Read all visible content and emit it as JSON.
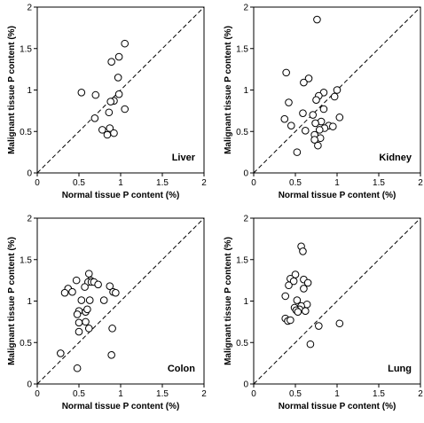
{
  "chart_data": [
    {
      "type": "scatter",
      "panel_label": "Liver",
      "xlabel": "Normal tissue P content (%)",
      "ylabel": "Malignant tissue P content (%)",
      "xlim": [
        0,
        2
      ],
      "ylim": [
        0,
        2
      ],
      "xticks": [
        "0",
        "0.5",
        "1",
        "1.5",
        "2"
      ],
      "yticks": [
        "0",
        "0.5",
        "1",
        "1.5",
        "2"
      ],
      "reference_line": "y = x (dashed)",
      "points": [
        {
          "x": 1.05,
          "y": 1.56
        },
        {
          "x": 0.98,
          "y": 1.4
        },
        {
          "x": 0.89,
          "y": 1.34
        },
        {
          "x": 0.97,
          "y": 1.15
        },
        {
          "x": 0.53,
          "y": 0.97
        },
        {
          "x": 0.7,
          "y": 0.94
        },
        {
          "x": 0.98,
          "y": 0.95
        },
        {
          "x": 0.92,
          "y": 0.87
        },
        {
          "x": 0.88,
          "y": 0.86
        },
        {
          "x": 0.86,
          "y": 0.73
        },
        {
          "x": 1.05,
          "y": 0.77
        },
        {
          "x": 0.69,
          "y": 0.66
        },
        {
          "x": 0.78,
          "y": 0.52
        },
        {
          "x": 0.87,
          "y": 0.54
        },
        {
          "x": 0.84,
          "y": 0.46
        },
        {
          "x": 0.92,
          "y": 0.48
        }
      ]
    },
    {
      "type": "scatter",
      "panel_label": "Kidney",
      "xlabel": "Normal tissue P content (%)",
      "ylabel": "Malignant tissue P content (%)",
      "xlim": [
        0,
        2
      ],
      "ylim": [
        0,
        2
      ],
      "xticks": [
        "0",
        "0.5",
        "1",
        "1.5",
        "2"
      ],
      "yticks": [
        "0",
        "0.5",
        "1",
        "1.5",
        "2"
      ],
      "reference_line": "y = x (dashed)",
      "points": [
        {
          "x": 0.76,
          "y": 1.85
        },
        {
          "x": 0.39,
          "y": 1.21
        },
        {
          "x": 0.66,
          "y": 1.14
        },
        {
          "x": 0.6,
          "y": 1.09
        },
        {
          "x": 1.0,
          "y": 1.0
        },
        {
          "x": 0.84,
          "y": 0.97
        },
        {
          "x": 0.78,
          "y": 0.93
        },
        {
          "x": 0.97,
          "y": 0.92
        },
        {
          "x": 0.75,
          "y": 0.88
        },
        {
          "x": 0.42,
          "y": 0.85
        },
        {
          "x": 0.84,
          "y": 0.77
        },
        {
          "x": 0.59,
          "y": 0.72
        },
        {
          "x": 0.71,
          "y": 0.7
        },
        {
          "x": 1.03,
          "y": 0.67
        },
        {
          "x": 0.37,
          "y": 0.65
        },
        {
          "x": 0.81,
          "y": 0.62
        },
        {
          "x": 0.74,
          "y": 0.6
        },
        {
          "x": 0.9,
          "y": 0.57
        },
        {
          "x": 0.45,
          "y": 0.57
        },
        {
          "x": 0.85,
          "y": 0.54
        },
        {
          "x": 0.95,
          "y": 0.56
        },
        {
          "x": 0.79,
          "y": 0.52
        },
        {
          "x": 0.62,
          "y": 0.51
        },
        {
          "x": 0.73,
          "y": 0.46
        },
        {
          "x": 0.8,
          "y": 0.42
        },
        {
          "x": 0.73,
          "y": 0.4
        },
        {
          "x": 0.52,
          "y": 0.25
        },
        {
          "x": 0.77,
          "y": 0.33
        }
      ]
    },
    {
      "type": "scatter",
      "panel_label": "Colon",
      "xlabel": "Normal tissue P content (%)",
      "ylabel": "Malignant tissue P content (%)",
      "xlim": [
        0,
        2
      ],
      "ylim": [
        0,
        2
      ],
      "xticks": [
        "0",
        "0.5",
        "1",
        "1.5",
        "2"
      ],
      "yticks": [
        "0",
        "0.5",
        "1",
        "1.5",
        "2"
      ],
      "reference_line": "y = x (dashed)",
      "points": [
        {
          "x": 0.62,
          "y": 1.33
        },
        {
          "x": 0.47,
          "y": 1.25
        },
        {
          "x": 0.64,
          "y": 1.25
        },
        {
          "x": 0.61,
          "y": 1.23
        },
        {
          "x": 0.65,
          "y": 1.23
        },
        {
          "x": 0.68,
          "y": 1.23
        },
        {
          "x": 0.73,
          "y": 1.2
        },
        {
          "x": 0.87,
          "y": 1.18
        },
        {
          "x": 0.57,
          "y": 1.17
        },
        {
          "x": 0.37,
          "y": 1.15
        },
        {
          "x": 0.33,
          "y": 1.1
        },
        {
          "x": 0.42,
          "y": 1.11
        },
        {
          "x": 0.91,
          "y": 1.11
        },
        {
          "x": 0.94,
          "y": 1.1
        },
        {
          "x": 0.53,
          "y": 1.01
        },
        {
          "x": 0.63,
          "y": 1.01
        },
        {
          "x": 0.8,
          "y": 1.01
        },
        {
          "x": 0.5,
          "y": 0.88
        },
        {
          "x": 0.58,
          "y": 0.87
        },
        {
          "x": 0.6,
          "y": 0.9
        },
        {
          "x": 0.48,
          "y": 0.84
        },
        {
          "x": 0.5,
          "y": 0.74
        },
        {
          "x": 0.58,
          "y": 0.75
        },
        {
          "x": 0.62,
          "y": 0.67
        },
        {
          "x": 0.9,
          "y": 0.67
        },
        {
          "x": 0.5,
          "y": 0.63
        },
        {
          "x": 0.28,
          "y": 0.37
        },
        {
          "x": 0.89,
          "y": 0.35
        },
        {
          "x": 0.48,
          "y": 0.19
        }
      ]
    },
    {
      "type": "scatter",
      "panel_label": "Lung",
      "xlabel": "Normal tissue P content (%)",
      "ylabel": "Malignant tissue P content (%)",
      "xlim": [
        0,
        2
      ],
      "ylim": [
        0,
        2
      ],
      "xticks": [
        "0",
        "0.5",
        "1",
        "1.5",
        "2"
      ],
      "yticks": [
        "0",
        "0.5",
        "1",
        "1.5",
        "2"
      ],
      "reference_line": "y = x (dashed)",
      "points": [
        {
          "x": 0.57,
          "y": 1.66
        },
        {
          "x": 0.59,
          "y": 1.6
        },
        {
          "x": 0.5,
          "y": 1.32
        },
        {
          "x": 0.44,
          "y": 1.27
        },
        {
          "x": 0.6,
          "y": 1.26
        },
        {
          "x": 0.48,
          "y": 1.24
        },
        {
          "x": 0.65,
          "y": 1.22
        },
        {
          "x": 0.42,
          "y": 1.19
        },
        {
          "x": 0.6,
          "y": 1.15
        },
        {
          "x": 0.38,
          "y": 1.06
        },
        {
          "x": 0.52,
          "y": 1.01
        },
        {
          "x": 0.64,
          "y": 0.96
        },
        {
          "x": 0.57,
          "y": 0.94
        },
        {
          "x": 0.49,
          "y": 0.92
        },
        {
          "x": 0.55,
          "y": 0.9
        },
        {
          "x": 0.51,
          "y": 0.89
        },
        {
          "x": 0.62,
          "y": 0.88
        },
        {
          "x": 0.53,
          "y": 0.87
        },
        {
          "x": 0.38,
          "y": 0.79
        },
        {
          "x": 0.41,
          "y": 0.76
        },
        {
          "x": 0.44,
          "y": 0.77
        },
        {
          "x": 0.78,
          "y": 0.7
        },
        {
          "x": 1.03,
          "y": 0.73
        },
        {
          "x": 0.68,
          "y": 0.48
        }
      ]
    }
  ]
}
